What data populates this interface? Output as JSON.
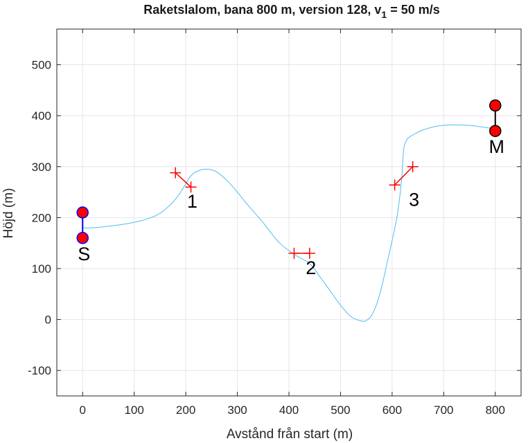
{
  "chart_data": {
    "type": "line",
    "title_main": "Raketslalom, bana 800 m, version 128, v",
    "title_sub": "1",
    "title_tail": " = 50 m/s",
    "xlabel": "Avstånd från start (m)",
    "ylabel": "Höjd (m)",
    "xlim": [
      -50,
      850
    ],
    "ylim": [
      -150,
      570
    ],
    "xticks": [
      0,
      100,
      200,
      300,
      400,
      500,
      600,
      700,
      800
    ],
    "yticks": [
      -100,
      0,
      100,
      200,
      300,
      400,
      500
    ],
    "xtick_labels": [
      "0",
      "100",
      "200",
      "300",
      "400",
      "500",
      "600",
      "700",
      "800"
    ],
    "ytick_labels": [
      "-100",
      "0",
      "100",
      "200",
      "300",
      "400",
      "500"
    ],
    "grid": true,
    "colors": {
      "path": "#4dbeee",
      "gate": "#ff0000",
      "start_post": "#0000ff",
      "finish_post": "#000000",
      "point_fill": "#ff0000",
      "axis": "#262626",
      "grid": "#e6e6e6"
    },
    "trajectory": {
      "x": [
        0,
        20,
        50,
        80,
        110,
        140,
        160,
        180,
        195,
        210,
        225,
        240,
        255,
        270,
        290,
        320,
        350,
        380,
        410,
        440,
        460,
        480,
        500,
        520,
        540,
        550,
        560,
        570,
        580,
        590,
        600,
        610,
        618,
        622,
        625,
        630,
        640,
        660,
        690,
        720,
        750,
        780,
        800
      ],
      "y": [
        180,
        180,
        183,
        187,
        193,
        203,
        216,
        236,
        258,
        282,
        292,
        295,
        292,
        282,
        262,
        225,
        190,
        152,
        128,
        110,
        84,
        56,
        28,
        6,
        -3,
        -2,
        8,
        30,
        65,
        110,
        155,
        205,
        270,
        330,
        345,
        355,
        362,
        372,
        380,
        382,
        381,
        377,
        374
      ]
    },
    "start": {
      "label": "S",
      "points": [
        {
          "x": 0,
          "y": 210
        },
        {
          "x": 0,
          "y": 160
        }
      ]
    },
    "finish": {
      "label": "M",
      "points": [
        {
          "x": 800,
          "y": 420
        },
        {
          "x": 800,
          "y": 370
        }
      ]
    },
    "gates": [
      {
        "label": "1",
        "points": [
          {
            "x": 180,
            "y": 288
          },
          {
            "x": 210,
            "y": 260
          }
        ]
      },
      {
        "label": "2",
        "points": [
          {
            "x": 410,
            "y": 130
          },
          {
            "x": 440,
            "y": 130
          }
        ]
      },
      {
        "label": "3",
        "points": [
          {
            "x": 605,
            "y": 264
          },
          {
            "x": 640,
            "y": 300
          }
        ]
      }
    ]
  }
}
